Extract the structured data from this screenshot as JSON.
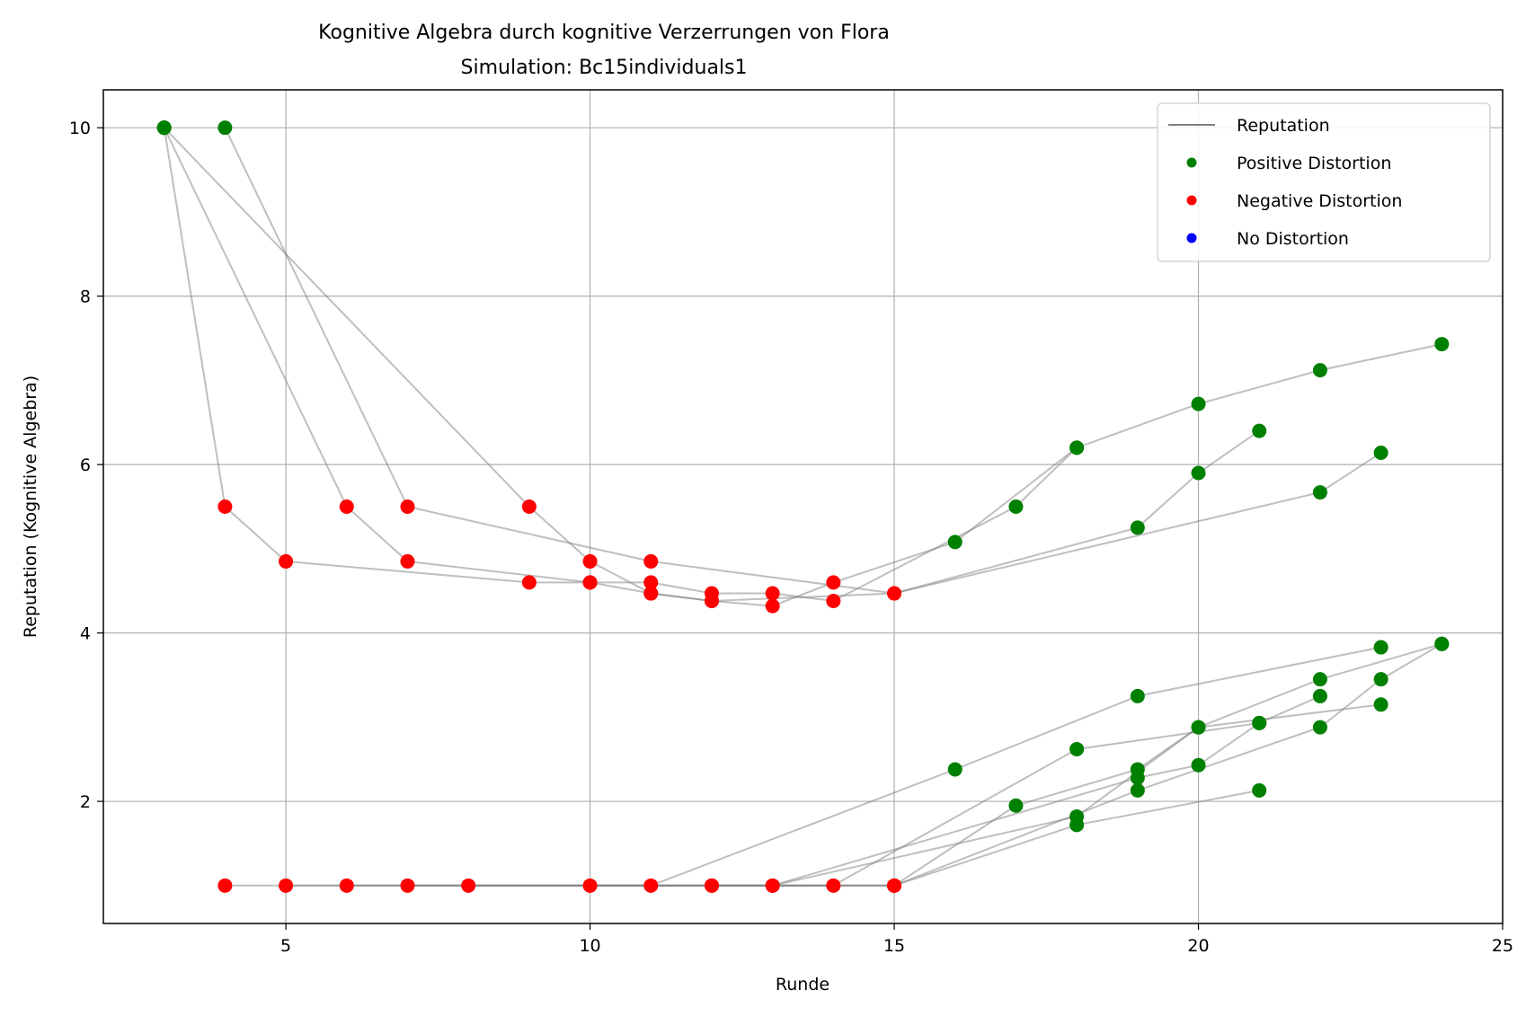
{
  "chart_data": {
    "type": "scatter",
    "title": "Kognitive Algebra durch kognitive Verzerrungen von Flora",
    "subtitle": "Simulation: Bc15individuals1",
    "xlabel": "Runde",
    "ylabel": "Reputation (Kognitive Algebra)",
    "xlim": [
      2.0,
      25.0
    ],
    "ylim": [
      0.55,
      10.45
    ],
    "xticks": [
      5,
      10,
      15,
      20,
      25
    ],
    "yticks": [
      2,
      4,
      6,
      8,
      10
    ],
    "grid": true,
    "legend_position": "top-right",
    "legend": [
      {
        "label": "Reputation",
        "kind": "line",
        "color": "#808080"
      },
      {
        "label": "Positive Distortion",
        "kind": "marker",
        "color": "#008000"
      },
      {
        "label": "Negative Distortion",
        "kind": "marker",
        "color": "#ff0000"
      },
      {
        "label": "No Distortion",
        "kind": "marker",
        "color": "#0000ff"
      }
    ],
    "colors": {
      "positive": "#008000",
      "negative": "#ff0000",
      "none": "#0000ff",
      "line": "#808080"
    },
    "series": [
      {
        "points": [
          [
            3,
            10,
            "g"
          ],
          [
            4,
            5.5,
            "r"
          ],
          [
            5,
            4.85,
            "r"
          ],
          [
            9,
            4.6,
            "r"
          ],
          [
            10,
            4.6,
            "r"
          ],
          [
            11,
            4.47,
            "r"
          ],
          [
            12,
            4.38,
            "r"
          ],
          [
            13,
            4.32,
            "r"
          ],
          [
            14,
            4.6,
            "r"
          ],
          [
            16,
            5.08,
            "g"
          ],
          [
            18,
            6.2,
            "g"
          ],
          [
            20,
            6.72,
            "g"
          ],
          [
            22,
            7.12,
            "g"
          ],
          [
            24,
            7.43,
            "g"
          ]
        ]
      },
      {
        "points": [
          [
            3,
            10,
            "g"
          ],
          [
            6,
            5.5,
            "r"
          ],
          [
            7,
            4.85,
            "r"
          ],
          [
            10,
            4.6,
            "r"
          ],
          [
            11,
            4.6,
            "r"
          ],
          [
            12,
            4.47,
            "r"
          ],
          [
            13,
            4.47,
            "r"
          ],
          [
            14,
            4.38,
            "r"
          ],
          [
            17,
            5.5,
            "g"
          ],
          [
            18,
            6.2,
            "g"
          ]
        ]
      },
      {
        "points": [
          [
            3,
            10,
            "g"
          ],
          [
            9,
            5.5,
            "r"
          ],
          [
            10,
            4.85,
            "r"
          ],
          [
            11,
            4.47,
            "r"
          ],
          [
            12,
            4.38,
            "r"
          ],
          [
            15,
            4.47,
            "r"
          ],
          [
            19,
            5.25,
            "g"
          ],
          [
            20,
            5.9,
            "g"
          ],
          [
            21,
            6.4,
            "g"
          ]
        ]
      },
      {
        "points": [
          [
            4,
            10,
            "g"
          ],
          [
            7,
            5.5,
            "r"
          ],
          [
            11,
            4.85,
            "r"
          ],
          [
            15,
            4.47,
            "r"
          ],
          [
            22,
            5.67,
            "g"
          ],
          [
            23,
            6.14,
            "g"
          ]
        ]
      },
      {
        "points": [
          [
            4,
            1,
            "r"
          ],
          [
            11,
            1,
            "r"
          ],
          [
            16,
            2.38,
            "g"
          ],
          [
            19,
            3.25,
            "g"
          ],
          [
            23,
            3.83,
            "g"
          ]
        ]
      },
      {
        "points": [
          [
            5,
            1,
            "r"
          ],
          [
            12,
            1,
            "r"
          ],
          [
            15,
            1,
            "r"
          ],
          [
            17,
            1.95,
            "g"
          ],
          [
            19,
            2.38,
            "g"
          ],
          [
            20,
            2.88,
            "g"
          ],
          [
            23,
            3.15,
            "g"
          ]
        ]
      },
      {
        "points": [
          [
            6,
            1,
            "r"
          ],
          [
            13,
            1,
            "r"
          ],
          [
            18,
            1.82,
            "g"
          ],
          [
            20,
            2.88,
            "g"
          ],
          [
            22,
            3.45,
            "g"
          ],
          [
            24,
            3.87,
            "g"
          ]
        ]
      },
      {
        "points": [
          [
            7,
            1,
            "r"
          ],
          [
            14,
            1,
            "r"
          ],
          [
            18,
            2.62,
            "g"
          ],
          [
            21,
            2.93,
            "g"
          ],
          [
            22,
            3.25,
            "g"
          ]
        ]
      },
      {
        "points": [
          [
            8,
            1,
            "r"
          ],
          [
            15,
            1,
            "r"
          ],
          [
            18,
            1.72,
            "g"
          ],
          [
            21,
            2.13,
            "g"
          ]
        ]
      },
      {
        "points": [
          [
            10,
            1,
            "r"
          ],
          [
            13,
            1,
            "r"
          ],
          [
            19,
            2.28,
            "g"
          ],
          [
            20,
            2.43,
            "g"
          ],
          [
            21,
            2.93,
            "g"
          ]
        ]
      },
      {
        "points": [
          [
            12,
            1,
            "r"
          ],
          [
            15,
            1,
            "r"
          ],
          [
            19,
            2.13,
            "g"
          ],
          [
            22,
            2.88,
            "g"
          ],
          [
            23,
            3.45,
            "g"
          ],
          [
            24,
            3.87,
            "g"
          ]
        ]
      }
    ]
  }
}
